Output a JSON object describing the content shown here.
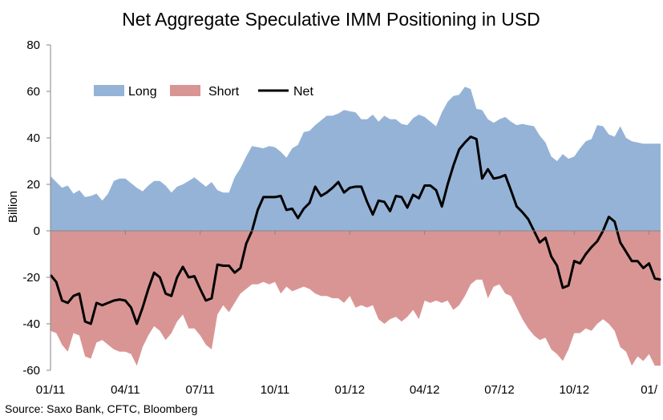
{
  "chart_data": {
    "type": "area",
    "title": "Net Aggregate Speculative IMM Positioning in USD",
    "ylabel": "Billion",
    "xlabel": "",
    "ylim": [
      -60,
      80
    ],
    "yticks": [
      80,
      60,
      40,
      20,
      0,
      -20,
      -40,
      -60
    ],
    "ytick_labels": [
      "80",
      "60",
      "40",
      "20",
      "0",
      "-20",
      "-40",
      "-60"
    ],
    "x_index_range": [
      0,
      106
    ],
    "xtick_labels": [
      {
        "label": "01/11",
        "index": 0
      },
      {
        "label": "04/11",
        "index": 13
      },
      {
        "label": "07/11",
        "index": 26
      },
      {
        "label": "10/11",
        "index": 39
      },
      {
        "label": "01/12",
        "index": 52
      },
      {
        "label": "04/12",
        "index": 65
      },
      {
        "label": "07/12",
        "index": 78
      },
      {
        "label": "10/12",
        "index": 91
      },
      {
        "label": "01/",
        "index": 104
      }
    ],
    "legend": {
      "position": "top-left",
      "entries": [
        {
          "name": "Long",
          "color": "#95b3d7"
        },
        {
          "name": "Short",
          "color": "#d99594"
        },
        {
          "name": "Net",
          "color": "#000000"
        }
      ]
    },
    "series": [
      {
        "name": "Long",
        "kind": "area",
        "color": "#95b3d7",
        "values": [
          23.5,
          21,
          18.5,
          19.5,
          16,
          17.5,
          14.5,
          15,
          16,
          13,
          16,
          21.5,
          22.5,
          22.5,
          20.5,
          18.5,
          17,
          19.5,
          21.5,
          21.5,
          19.5,
          16.5,
          19,
          20,
          21.5,
          23,
          21,
          19,
          21,
          17.5,
          16.5,
          16.5,
          23,
          27,
          32,
          36.5,
          36,
          35.5,
          36.5,
          36,
          34,
          31.5,
          35.5,
          37,
          42.5,
          43,
          45.5,
          47.5,
          49.5,
          49.5,
          50.5,
          52,
          51.5,
          51,
          48,
          48,
          50,
          47,
          49.5,
          48,
          48,
          46,
          45.5,
          48.5,
          50,
          49,
          47,
          45,
          51,
          55.5,
          58,
          58.5,
          62,
          61,
          52.5,
          52,
          48,
          46.5,
          48,
          49,
          47,
          45.5,
          46,
          45.5,
          45,
          41,
          38,
          32,
          30,
          33,
          31,
          32,
          35.5,
          38.5,
          39.5,
          45.5,
          45,
          41.5,
          40.5,
          45,
          40,
          38.5,
          38,
          37.5,
          37.5,
          37.5,
          37.5
        ]
      },
      {
        "name": "Short",
        "kind": "area",
        "color": "#d99594",
        "values": [
          -43,
          -44,
          -49,
          -52,
          -44,
          -45,
          -54,
          -55,
          -48,
          -47,
          -49,
          -51,
          -52,
          -52,
          -53,
          -58,
          -50,
          -45,
          -41,
          -43,
          -47,
          -44,
          -39,
          -36,
          -42,
          -42,
          -45,
          -49,
          -51,
          -36,
          -32,
          -35,
          -31,
          -27,
          -25,
          -23,
          -23,
          -22,
          -23,
          -22,
          -27,
          -24,
          -26,
          -25,
          -24,
          -25,
          -27,
          -28,
          -28,
          -29,
          -29,
          -31,
          -28,
          -33,
          -32,
          -33,
          -32,
          -38,
          -40,
          -38,
          -37,
          -39,
          -37,
          -34,
          -38,
          -30,
          -31,
          -30,
          -31,
          -30,
          -34,
          -32,
          -28,
          -23,
          -21,
          -21,
          -29,
          -24,
          -23,
          -27,
          -28,
          -33,
          -38,
          -42,
          -45,
          -47,
          -46,
          -51,
          -53,
          -56,
          -51,
          -44,
          -44,
          -42,
          -43,
          -40,
          -38,
          -40,
          -43,
          -50,
          -52,
          -58,
          -54,
          -56,
          -53,
          -58,
          -58
        ]
      },
      {
        "name": "Net",
        "kind": "line",
        "color": "#000000",
        "values": [
          -19,
          -22,
          -30,
          -31,
          -28,
          -27,
          -39,
          -40,
          -31,
          -32,
          -31,
          -30,
          -29.5,
          -30,
          -33,
          -40,
          -33,
          -25,
          -18,
          -20,
          -27,
          -28,
          -20,
          -15.5,
          -20,
          -19.5,
          -25,
          -30,
          -29,
          -14.5,
          -15,
          -15,
          -18,
          -16,
          -5.5,
          0,
          9,
          14.5,
          14.5,
          14.5,
          15,
          9,
          9.5,
          5.5,
          9.5,
          12,
          19,
          15,
          16.5,
          18.5,
          21,
          16.5,
          18.5,
          19,
          19,
          12.5,
          7,
          13,
          12.5,
          8.5,
          15,
          14.5,
          10,
          15.5,
          14,
          19.5,
          19.5,
          17.5,
          10.5,
          20,
          28,
          35,
          38,
          40.5,
          39.5,
          22.5,
          26.5,
          22.5,
          23,
          24,
          17.5,
          10.5,
          8,
          5,
          0,
          -5,
          -3,
          -11,
          -15,
          -24.5,
          -23.5,
          -13,
          -14,
          -10,
          -7,
          -4.5,
          0,
          6,
          4,
          -5,
          -9,
          -13,
          -13,
          -16,
          -14,
          -20.5,
          -21
        ]
      }
    ]
  },
  "source_text": "Source: Saxo Bank, CFTC, Bloomberg"
}
